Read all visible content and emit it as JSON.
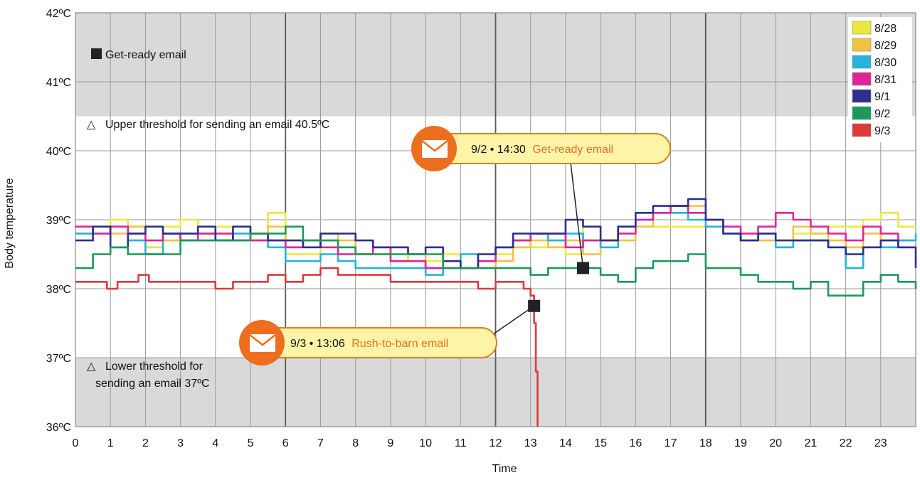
{
  "chart_data": {
    "type": "line",
    "xlabel": "Time",
    "ylabel": "Body temperature",
    "xlim": [
      0,
      24
    ],
    "ylim": [
      36,
      42
    ],
    "x_ticks": [
      "0",
      "1",
      "2",
      "3",
      "4",
      "5",
      "6",
      "7",
      "8",
      "9",
      "10",
      "11",
      "12",
      "13",
      "14",
      "15",
      "16",
      "17",
      "18",
      "19",
      "20",
      "21",
      "22",
      "23"
    ],
    "y_ticks": [
      "36ºC",
      "37ºC",
      "38ºC",
      "39ºC",
      "40ºC",
      "41ºC",
      "42ºC"
    ],
    "grid": true,
    "legend_position": "top-right",
    "upper_threshold": {
      "value": 40.5,
      "label": "Upper threshold for sending an email 40.5ºC"
    },
    "lower_threshold": {
      "value": 37,
      "label_lines": [
        "Lower threshold for",
        "sending an email 37ºC"
      ]
    },
    "marker_legend": "Get-ready email",
    "annotations": [
      {
        "x": 14.5,
        "y": 38.3,
        "date_time": "9/2 • 14:30",
        "label": "Get-ready email"
      },
      {
        "x": 13.1,
        "y": 37.75,
        "date_time": "9/3 • 13:06",
        "label": "Rush-to-barn email"
      }
    ],
    "series": [
      {
        "name": "8/28",
        "color": "#eaea3a",
        "x": [
          0,
          0.5,
          1,
          1.5,
          2,
          2.5,
          3,
          3.5,
          4,
          4.5,
          5,
          5.5,
          6,
          6.5,
          7,
          7.5,
          8,
          8.5,
          9,
          9.5,
          10,
          10.5,
          11,
          11.5,
          12,
          12.5,
          13,
          13.5,
          14,
          14.5,
          15,
          15.5,
          16,
          16.5,
          17,
          17.5,
          18,
          18.5,
          19,
          19.5,
          20,
          20.5,
          21,
          21.5,
          22,
          22.5,
          23,
          23.5,
          24
        ],
        "values": [
          38.8,
          38.9,
          39.0,
          38.9,
          38.6,
          38.9,
          39.0,
          38.8,
          38.9,
          38.9,
          38.8,
          39.1,
          38.5,
          38.5,
          38.7,
          38.6,
          38.5,
          38.6,
          38.4,
          38.5,
          38.4,
          38.5,
          38.3,
          38.4,
          38.5,
          38.6,
          38.6,
          38.7,
          38.5,
          38.9,
          38.6,
          38.8,
          38.9,
          38.9,
          38.9,
          38.9,
          38.9,
          38.9,
          38.8,
          38.8,
          38.7,
          38.8,
          38.9,
          38.9,
          38.9,
          39.0,
          39.1,
          38.9,
          38.9
        ]
      },
      {
        "name": "8/29",
        "color": "#f3c242",
        "x": [
          0,
          0.5,
          1,
          1.5,
          2,
          2.5,
          3,
          3.5,
          4,
          4.5,
          5,
          5.5,
          6,
          6.5,
          7,
          7.5,
          8,
          8.5,
          9,
          9.5,
          10,
          10.5,
          11,
          11.5,
          12,
          12.5,
          13,
          13.5,
          14,
          14.5,
          15,
          15.5,
          16,
          16.5,
          17,
          17.5,
          18,
          18.5,
          19,
          19.5,
          20,
          20.5,
          21,
          21.5,
          22,
          22.5,
          23,
          23.5,
          24
        ],
        "values": [
          38.9,
          38.9,
          38.8,
          38.9,
          38.5,
          38.7,
          38.8,
          38.7,
          38.8,
          38.7,
          38.8,
          38.9,
          38.6,
          38.6,
          38.8,
          38.7,
          38.5,
          38.5,
          38.6,
          38.5,
          38.3,
          38.4,
          38.3,
          38.3,
          38.4,
          38.6,
          38.7,
          38.6,
          38.7,
          38.5,
          38.7,
          38.7,
          38.9,
          39.1,
          39.2,
          39.2,
          39.0,
          38.8,
          38.7,
          38.7,
          38.6,
          38.9,
          38.8,
          38.7,
          38.6,
          38.8,
          38.7,
          38.7,
          38.7
        ]
      },
      {
        "name": "8/30",
        "color": "#25b3de",
        "x": [
          0,
          0.5,
          1,
          1.5,
          2,
          2.5,
          3,
          3.5,
          4,
          4.5,
          5,
          5.5,
          6,
          6.5,
          7,
          7.5,
          8,
          8.5,
          9,
          9.5,
          10,
          10.5,
          11,
          11.5,
          12,
          12.5,
          13,
          13.5,
          14,
          14.5,
          15,
          15.5,
          16,
          16.5,
          17,
          17.5,
          18,
          18.5,
          19,
          19.5,
          20,
          20.5,
          21,
          21.5,
          22,
          22.5,
          23,
          23.5,
          24
        ],
        "values": [
          38.8,
          38.8,
          38.9,
          38.7,
          38.5,
          38.8,
          38.7,
          38.8,
          38.7,
          38.8,
          38.7,
          38.6,
          38.4,
          38.4,
          38.5,
          38.4,
          38.3,
          38.3,
          38.3,
          38.3,
          38.2,
          38.3,
          38.5,
          38.4,
          38.6,
          38.7,
          38.8,
          38.7,
          38.8,
          38.7,
          38.6,
          38.9,
          39.0,
          39.1,
          39.1,
          39.0,
          38.9,
          38.8,
          38.7,
          38.8,
          38.6,
          38.7,
          38.7,
          38.6,
          38.3,
          38.6,
          38.6,
          38.7,
          38.8
        ]
      },
      {
        "name": "8/31",
        "color": "#e1239a",
        "x": [
          0,
          0.5,
          1,
          1.5,
          2,
          2.5,
          3,
          3.5,
          4,
          4.5,
          5,
          5.5,
          6,
          6.5,
          7,
          7.5,
          8,
          8.5,
          9,
          9.5,
          10,
          10.5,
          11,
          11.5,
          12,
          12.5,
          13,
          13.5,
          14,
          14.5,
          15,
          15.5,
          16,
          16.5,
          17,
          17.5,
          18,
          18.5,
          19,
          19.5,
          20,
          20.5,
          21,
          21.5,
          22,
          22.5,
          23,
          23.5,
          24
        ],
        "values": [
          38.9,
          38.8,
          38.9,
          38.8,
          38.7,
          38.8,
          38.7,
          38.8,
          38.8,
          38.7,
          38.7,
          38.7,
          38.6,
          38.7,
          38.6,
          38.5,
          38.5,
          38.6,
          38.4,
          38.4,
          38.3,
          38.3,
          38.3,
          38.4,
          38.6,
          38.7,
          38.8,
          38.8,
          38.6,
          38.7,
          38.7,
          38.8,
          39.0,
          39.1,
          39.2,
          39.1,
          39.0,
          38.9,
          38.8,
          38.9,
          39.1,
          39.0,
          38.9,
          38.8,
          38.7,
          38.9,
          38.8,
          38.6,
          38.6
        ]
      },
      {
        "name": "9/1",
        "color": "#2c2f8e",
        "x": [
          0,
          0.5,
          1,
          1.5,
          2,
          2.5,
          3,
          3.5,
          4,
          4.5,
          5,
          5.5,
          6,
          6.5,
          7,
          7.5,
          8,
          8.5,
          9,
          9.5,
          10,
          10.5,
          11,
          11.5,
          12,
          12.5,
          13,
          13.5,
          14,
          14.5,
          15,
          15.5,
          16,
          16.5,
          17,
          17.5,
          18,
          18.5,
          19,
          19.5,
          20,
          20.5,
          21,
          21.5,
          22,
          22.5,
          23,
          23.5,
          24
        ],
        "values": [
          38.7,
          38.9,
          38.6,
          38.8,
          38.9,
          38.8,
          38.8,
          38.9,
          38.7,
          38.9,
          38.8,
          38.7,
          38.7,
          38.6,
          38.8,
          38.8,
          38.7,
          38.6,
          38.6,
          38.5,
          38.6,
          38.4,
          38.3,
          38.5,
          38.6,
          38.8,
          38.8,
          38.8,
          39.0,
          38.9,
          38.7,
          38.9,
          39.1,
          39.2,
          39.2,
          39.3,
          39.0,
          38.8,
          38.7,
          38.8,
          38.7,
          38.7,
          38.7,
          38.6,
          38.5,
          38.6,
          38.7,
          38.6,
          38.3
        ]
      },
      {
        "name": "9/2",
        "color": "#1a9a5a",
        "x": [
          0,
          0.5,
          1,
          1.5,
          2,
          2.5,
          3,
          3.5,
          4,
          4.5,
          5,
          5.5,
          6,
          6.5,
          7,
          7.5,
          8,
          8.5,
          9,
          9.5,
          10,
          10.5,
          11,
          11.5,
          12,
          12.5,
          13,
          13.5,
          14,
          14.5,
          15,
          15.5,
          16,
          16.5,
          17,
          17.5,
          18,
          18.5,
          19,
          19.5,
          20,
          20.5,
          21,
          21.5,
          22,
          22.5,
          23,
          23.5,
          24
        ],
        "values": [
          38.3,
          38.5,
          38.6,
          38.5,
          38.5,
          38.5,
          38.7,
          38.7,
          38.7,
          38.7,
          38.8,
          38.8,
          38.9,
          38.7,
          38.7,
          38.6,
          38.5,
          38.5,
          38.5,
          38.5,
          38.5,
          38.3,
          38.3,
          38.3,
          38.3,
          38.3,
          38.2,
          38.3,
          38.3,
          38.3,
          38.2,
          38.1,
          38.3,
          38.4,
          38.4,
          38.5,
          38.3,
          38.3,
          38.2,
          38.1,
          38.1,
          38.0,
          38.1,
          37.9,
          37.9,
          38.1,
          38.2,
          38.1,
          38.0
        ]
      },
      {
        "name": "9/3",
        "color": "#df3a3a",
        "x": [
          0,
          0.3,
          0.6,
          0.9,
          1.2,
          1.5,
          1.8,
          2.1,
          2.4,
          2.7,
          3,
          3.5,
          4,
          4.5,
          5,
          5.5,
          6,
          6.5,
          7,
          7.5,
          8,
          8.5,
          9,
          9.5,
          10,
          10.5,
          11,
          11.5,
          12,
          12.5,
          12.8,
          13.0,
          13.1,
          13.15,
          13.2
        ],
        "values": [
          38.1,
          38.1,
          38.1,
          38.0,
          38.1,
          38.1,
          38.2,
          38.1,
          38.1,
          38.1,
          38.1,
          38.1,
          38.0,
          38.1,
          38.1,
          38.2,
          38.1,
          38.2,
          38.3,
          38.2,
          38.2,
          38.2,
          38.1,
          38.1,
          38.1,
          38.1,
          38.1,
          38.0,
          38.1,
          38.1,
          38.0,
          37.9,
          37.5,
          36.8,
          36.0
        ]
      }
    ]
  }
}
